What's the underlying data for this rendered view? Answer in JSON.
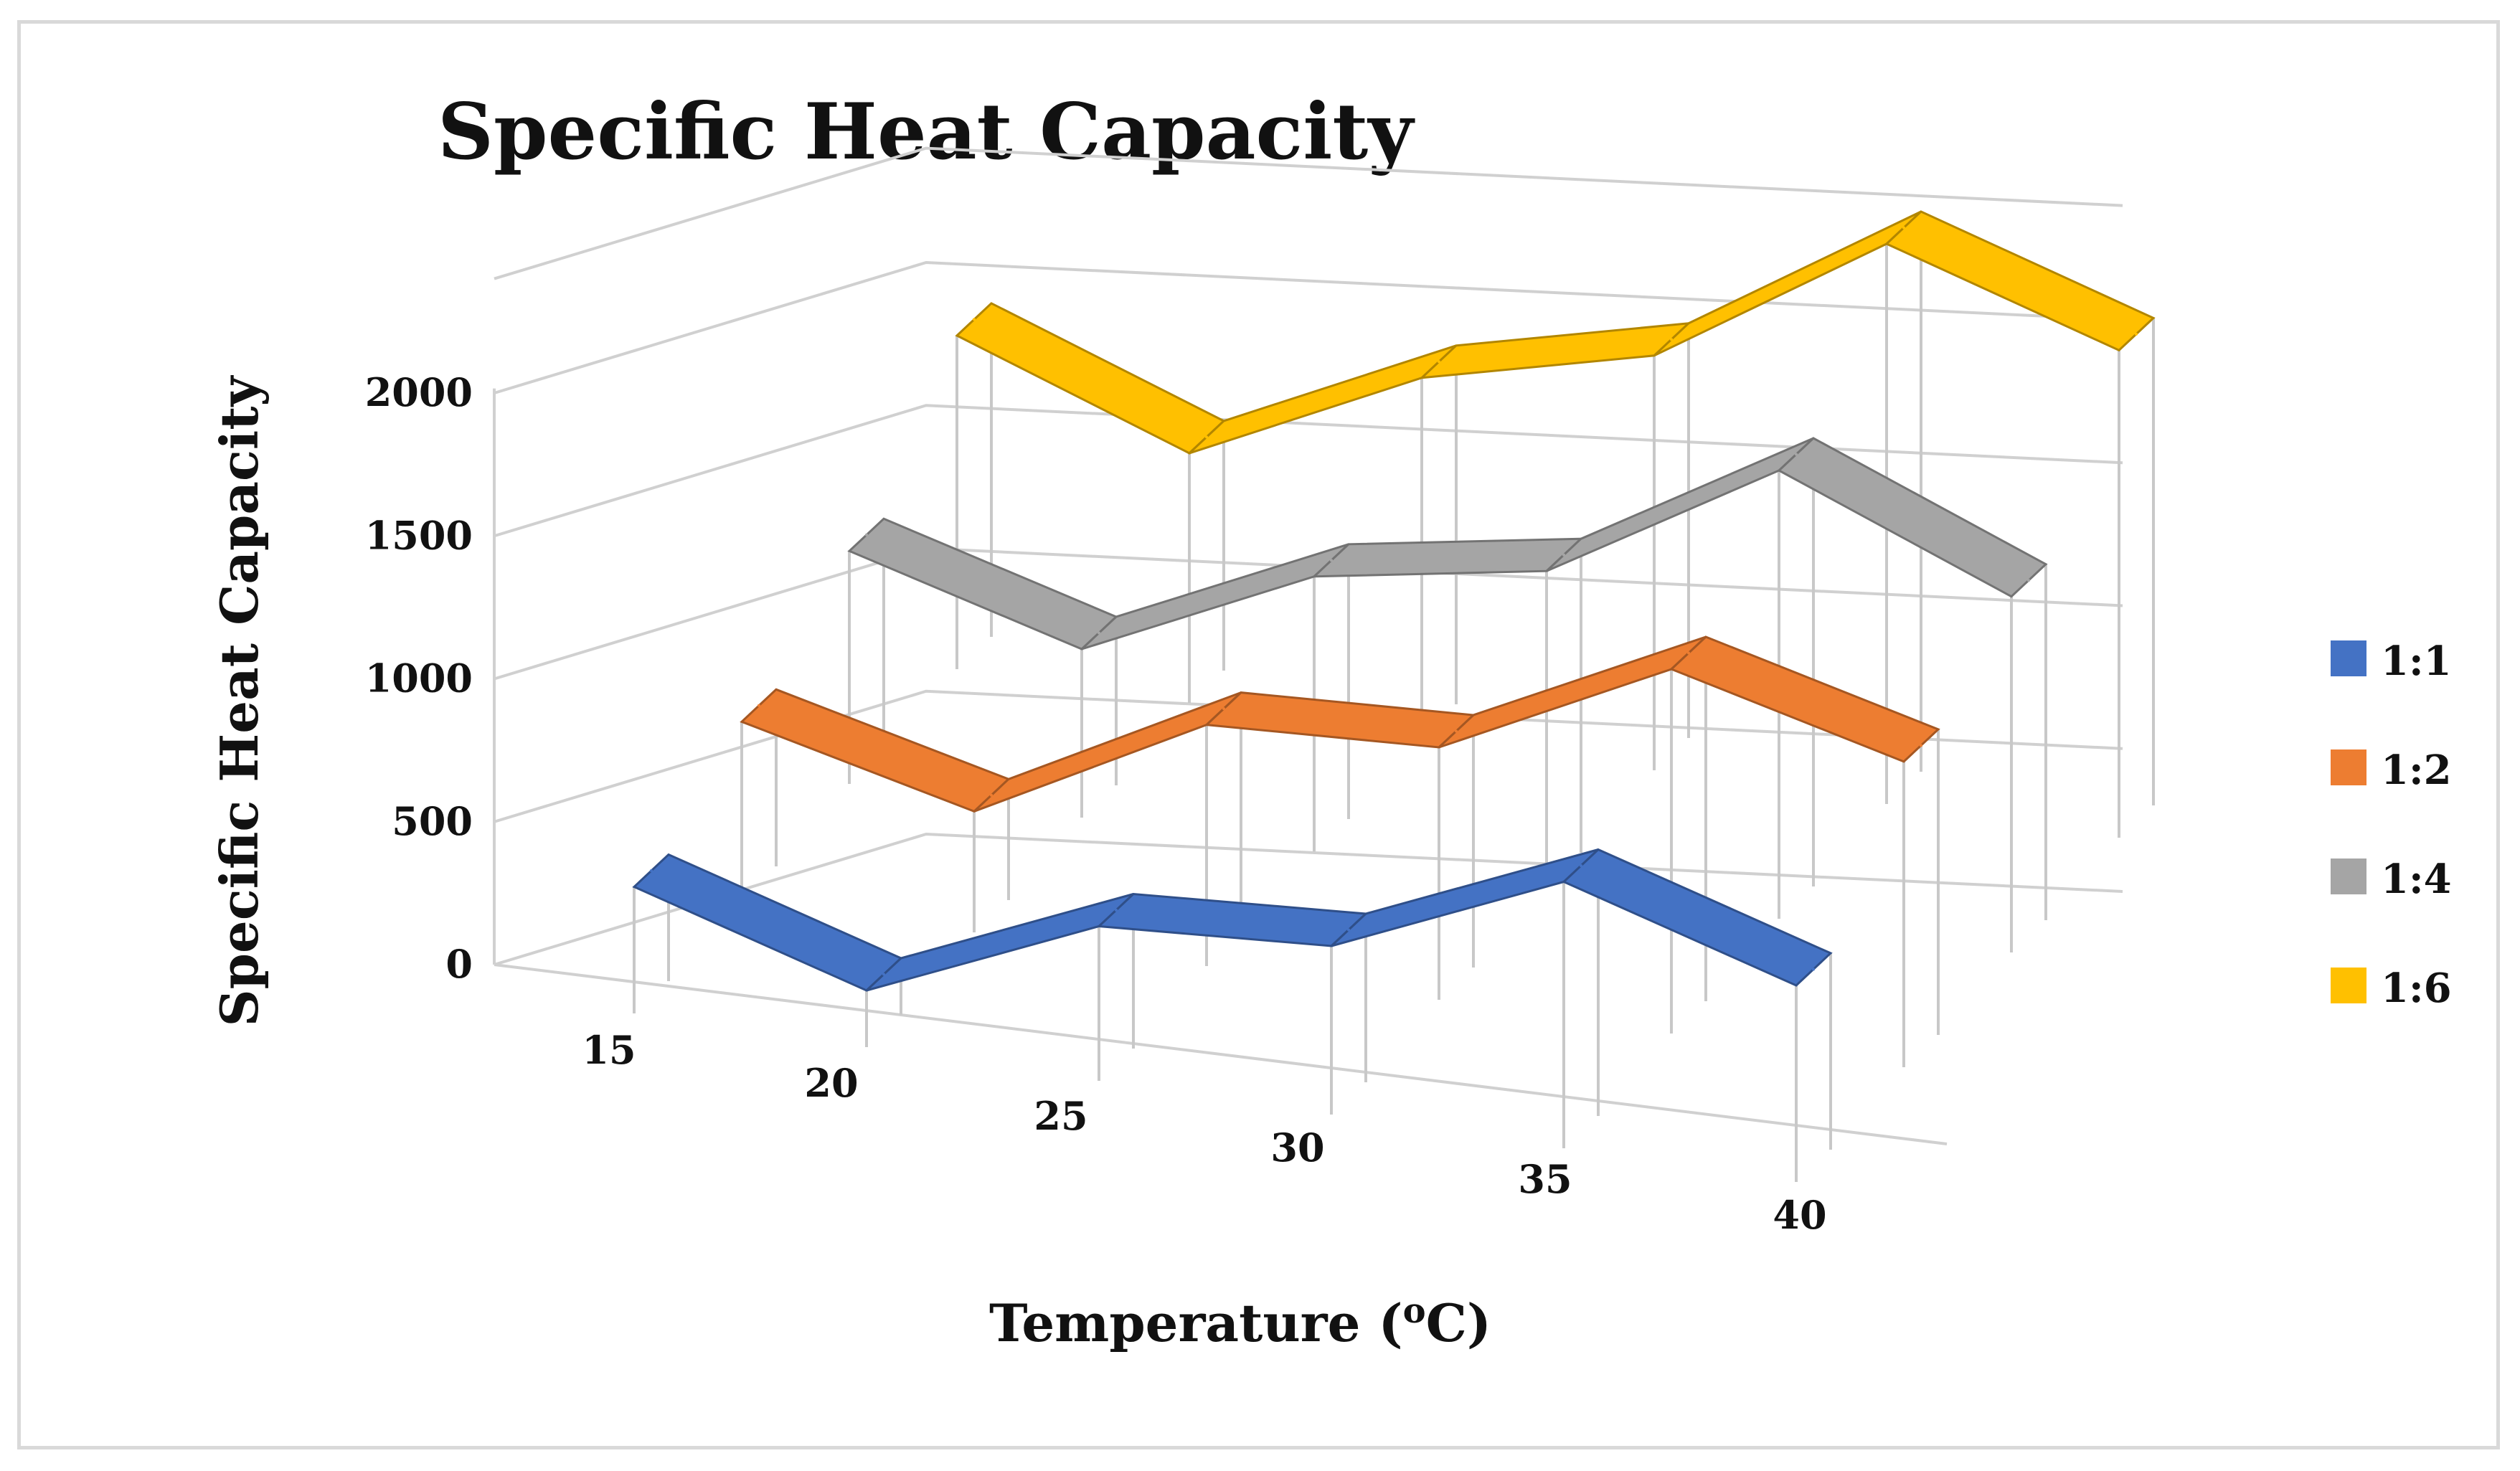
{
  "chart_data": {
    "type": "line",
    "subtype": "3d-ribbon",
    "title": "Specific Heat Capacity",
    "xlabel": "Temperature (oC)",
    "xlabel_main": "Temperature (",
    "xlabel_sup": "o",
    "xlabel_end": "C)",
    "ylabel": "Specific Heat Capacity",
    "categories": [
      "15",
      "20",
      "25",
      "30",
      "35",
      "40"
    ],
    "y_ticks": [
      "0",
      "500",
      "1000",
      "1500",
      "2000"
    ],
    "ylim": [
      0,
      2000
    ],
    "grid": true,
    "legend_position": "right",
    "series": [
      {
        "name": "1:1",
        "color": "#4472C4",
        "values": [
          350,
          100,
          450,
          500,
          850,
          600
        ]
      },
      {
        "name": "1:2",
        "color": "#ED7D31",
        "values": [
          530,
          330,
          760,
          800,
          1200,
          990
        ]
      },
      {
        "name": "1:4",
        "color": "#A5A5A5",
        "values": [
          730,
          500,
          880,
          1020,
          1500,
          1170
        ]
      },
      {
        "name": "1:6",
        "color": "#FFC000",
        "values": [
          1090,
          790,
          1180,
          1380,
          1900,
          1640
        ]
      }
    ]
  }
}
